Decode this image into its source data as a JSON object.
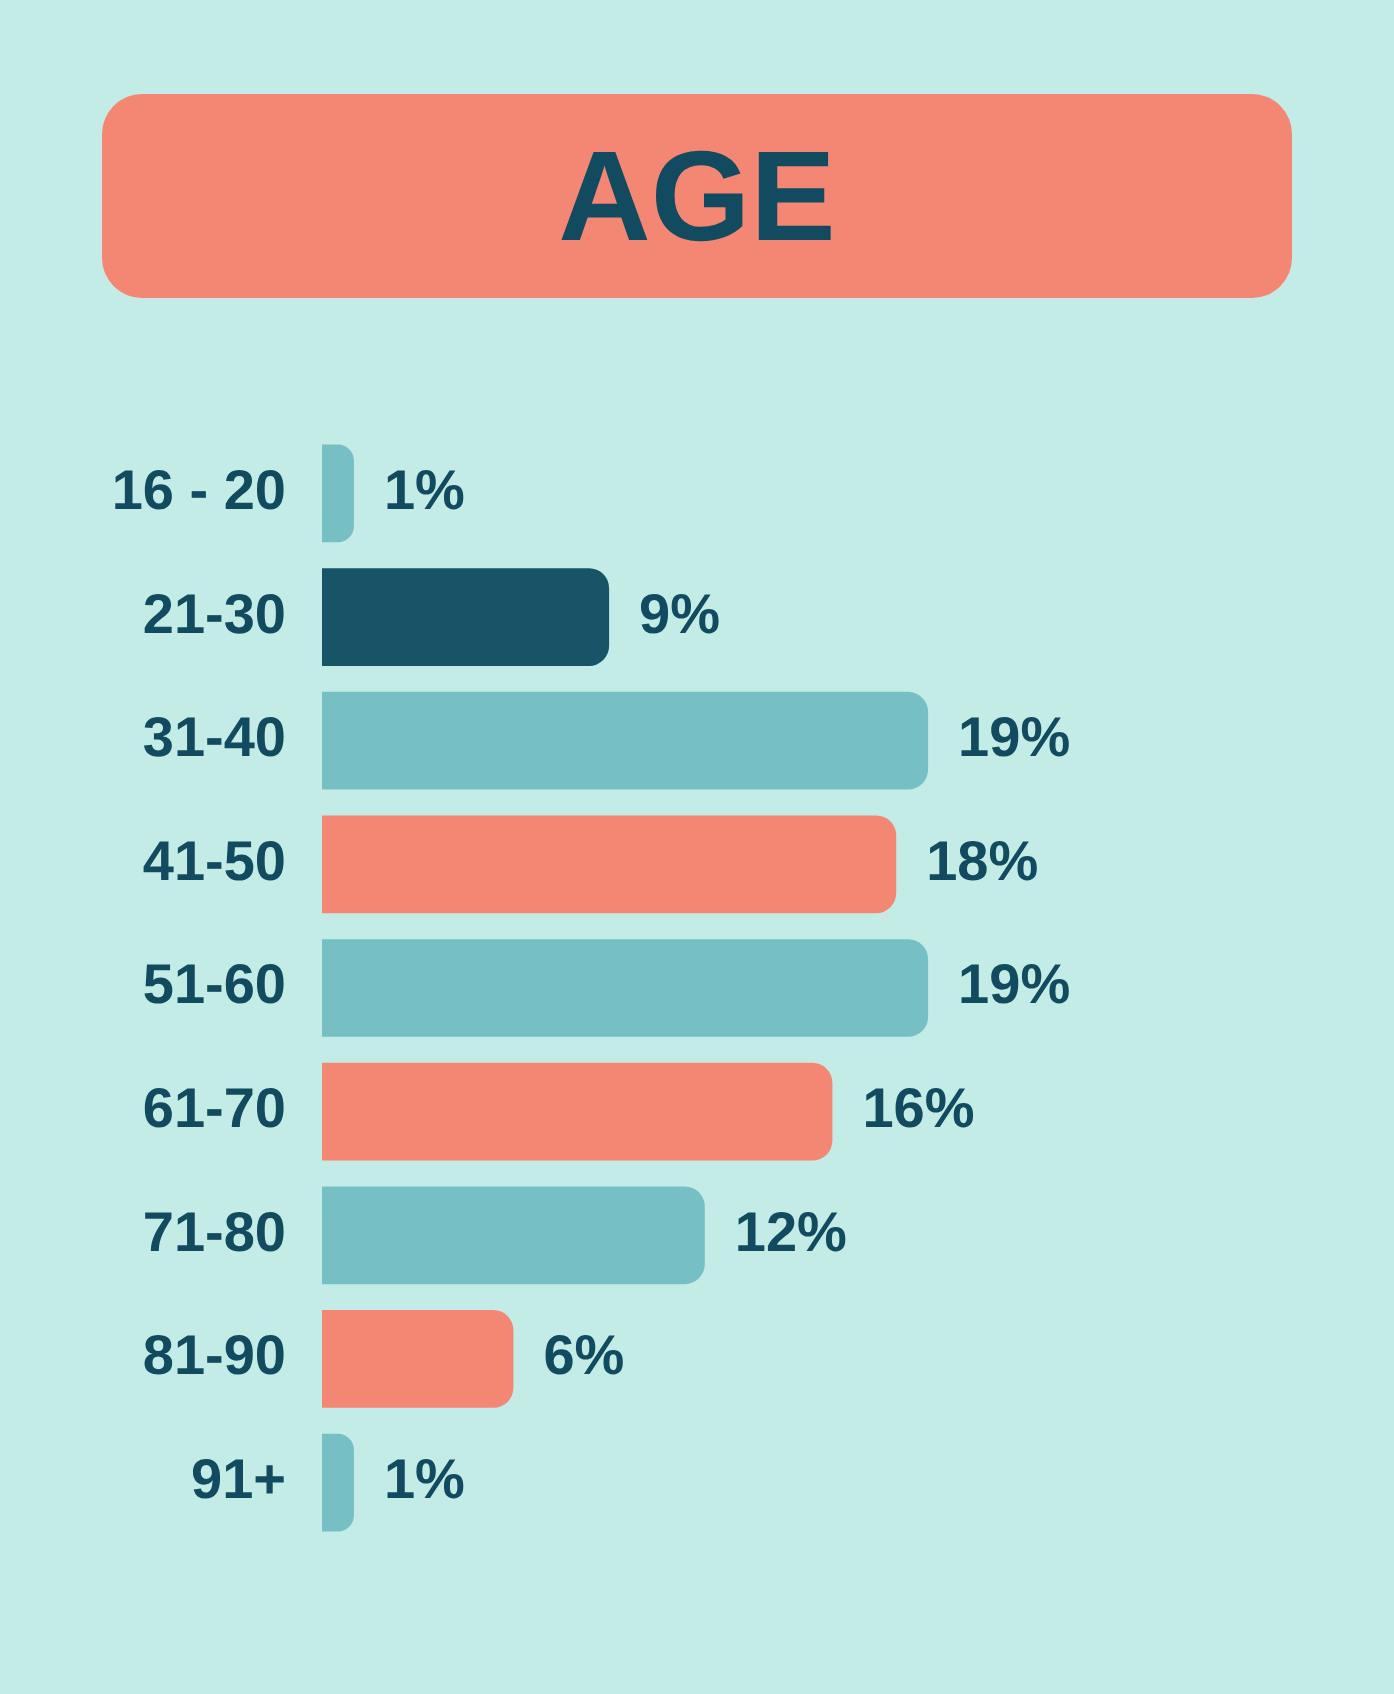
{
  "chart_data": {
    "type": "bar",
    "title": "AGE",
    "orientation": "horizontal",
    "categories": [
      "16 - 20",
      "21-30",
      "31-40",
      "41-50",
      "51-60",
      "61-70",
      "71-80",
      "81-90",
      "91+"
    ],
    "values": [
      1,
      9,
      19,
      18,
      19,
      16,
      12,
      6,
      1
    ],
    "colors": [
      "#76bfc4",
      "#175467",
      "#76bfc4",
      "#f48674",
      "#76bfc4",
      "#f48674",
      "#76bfc4",
      "#f48674",
      "#76bfc4"
    ],
    "value_labels": [
      "1%",
      "9%",
      "19%",
      "18%",
      "19%",
      "16%",
      "12%",
      "6%",
      "1%"
    ]
  }
}
